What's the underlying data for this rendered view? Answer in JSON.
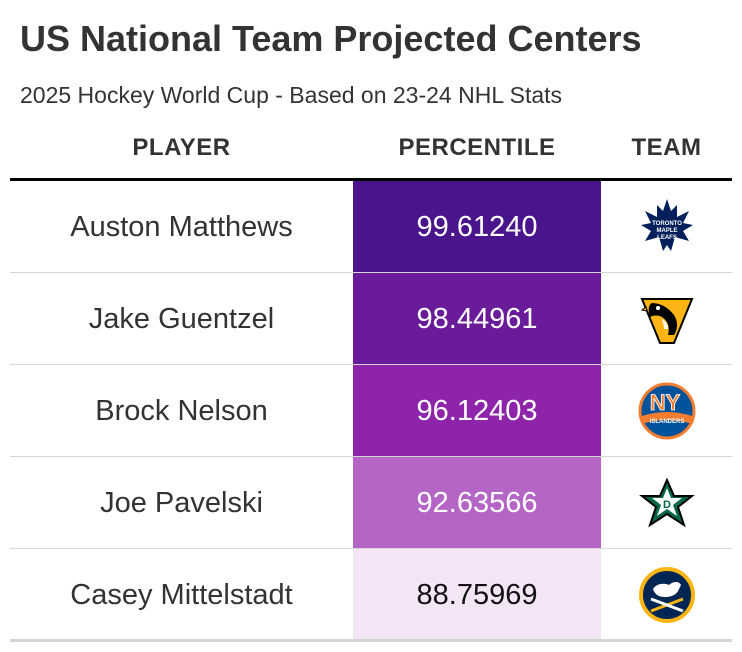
{
  "title": "US National Team Projected Centers",
  "subtitle": "2025 Hockey World Cup - Based on 23-24 NHL Stats",
  "columns": {
    "player": "PLAYER",
    "percentile": "PERCENTILE",
    "team": "TEAM"
  },
  "rows": [
    {
      "player": "Auston Matthews",
      "percentile": "99.61240",
      "team_logo": "maple-leafs-logo",
      "fill": "#4a148c",
      "text_color": "#ffffff"
    },
    {
      "player": "Jake Guentzel",
      "percentile": "98.44961",
      "team_logo": "penguins-logo",
      "fill": "#6a1b9a",
      "text_color": "#ffffff"
    },
    {
      "player": "Brock Nelson",
      "percentile": "96.12403",
      "team_logo": "islanders-logo",
      "fill": "#8e24aa",
      "text_color": "#ffffff"
    },
    {
      "player": "Joe Pavelski",
      "percentile": "92.63566",
      "team_logo": "stars-logo",
      "fill": "#b565c6",
      "text_color": "#ffffff"
    },
    {
      "player": "Casey Mittelstadt",
      "percentile": "88.75969",
      "team_logo": "sabres-logo",
      "fill": "#f3e5f5",
      "text_color": "#111111"
    }
  ],
  "logo_text": {
    "maple_leafs": "TORONTO MAPLE LEAFS",
    "islanders": "NY ISLANDERS"
  }
}
